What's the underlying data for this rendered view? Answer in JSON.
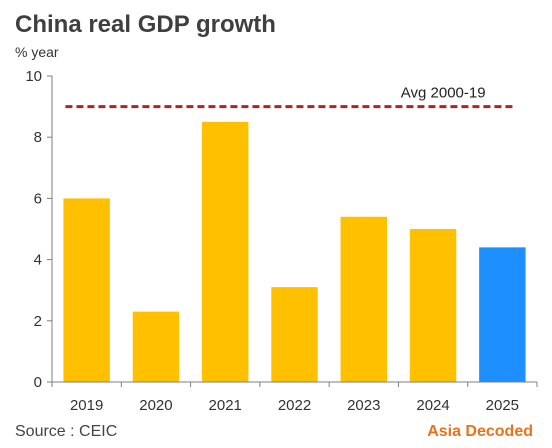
{
  "chart_data": {
    "type": "bar",
    "title": "China real GDP growth",
    "ylabel": "% year",
    "xlabel": "",
    "categories": [
      "2019",
      "2020",
      "2021",
      "2022",
      "2023",
      "2024",
      "2025"
    ],
    "values": [
      6.0,
      2.3,
      8.5,
      3.1,
      5.4,
      5.0,
      4.4
    ],
    "ylim": [
      0,
      10
    ],
    "yticks": [
      "0",
      "2",
      "4",
      "6",
      "8",
      "10"
    ],
    "grid": false,
    "bar_colors": [
      "#FFC000",
      "#FFC000",
      "#FFC000",
      "#FFC000",
      "#FFC000",
      "#FFC000",
      "#1E8FFF"
    ],
    "reference_line": {
      "label": "Avg 2000-19",
      "value": 9.0,
      "color": "#B22222"
    }
  },
  "footer": {
    "source": "Source : CEIC",
    "brand": "Asia Decoded",
    "brand_color": "#E8731B"
  }
}
